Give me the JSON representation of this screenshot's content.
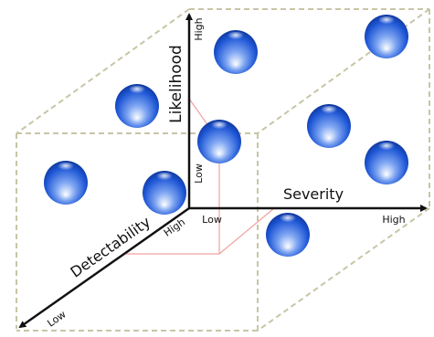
{
  "axes": {
    "likelihood": {
      "title": "Likelihood",
      "low": "Low",
      "high": "High"
    },
    "severity": {
      "title": "Severity",
      "low": "Low",
      "high": "High"
    },
    "detectability": {
      "title": "Detectability",
      "low": "Low",
      "high": "High"
    }
  },
  "colors": {
    "axis": "#111111",
    "cube_edge": "#c8c5a6",
    "projection": "#f2a0a0",
    "sphere_dark": "#0a2e8c",
    "sphere_mid": "#1f57d6",
    "sphere_light": "#ffffff"
  }
}
